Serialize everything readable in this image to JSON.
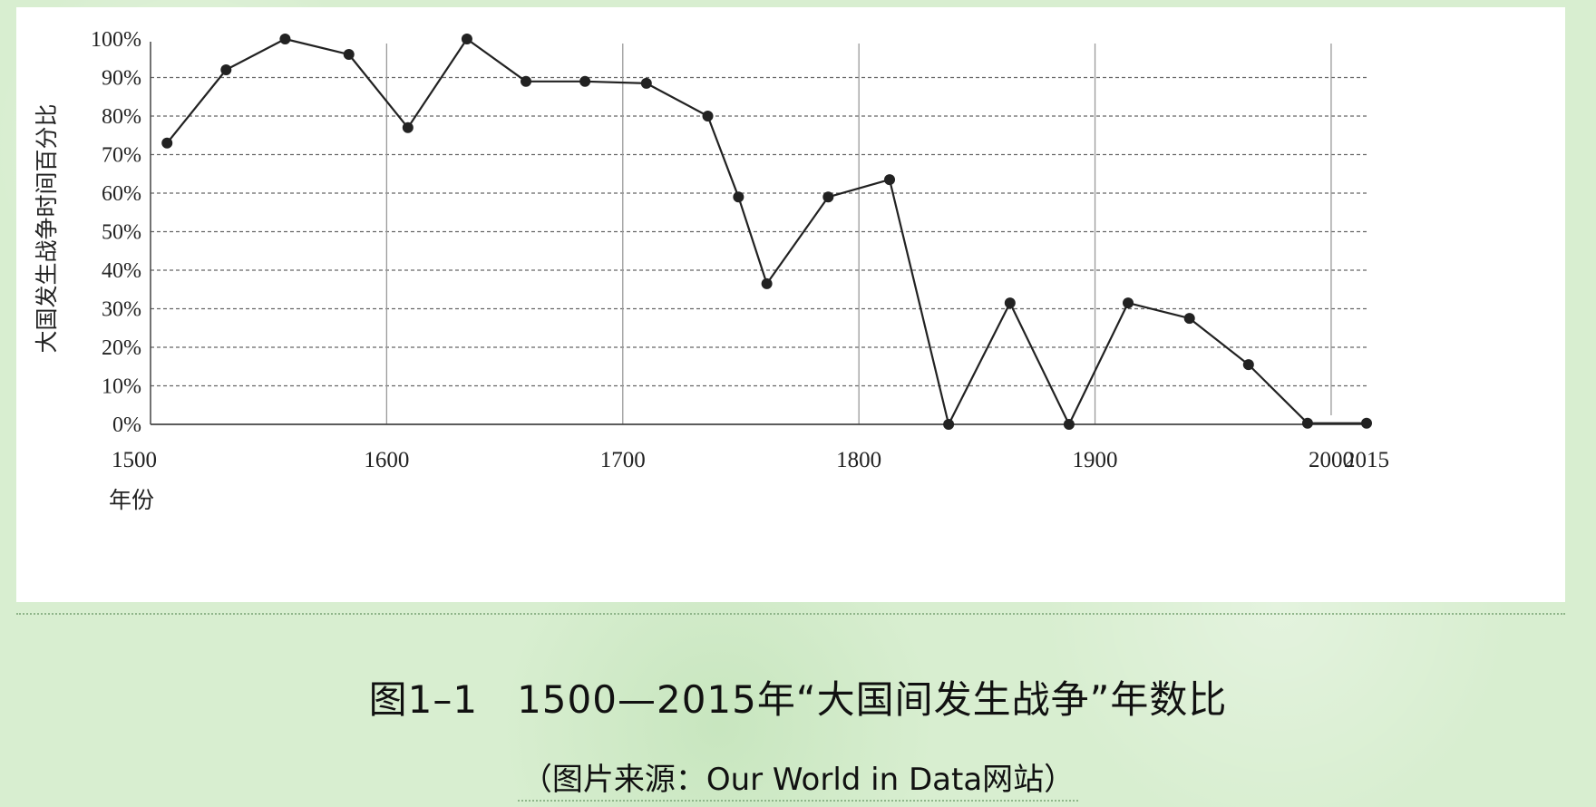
{
  "chart_data": {
    "type": "line",
    "ylabel": "大国发生战争时间百分比",
    "xlabel": "年份",
    "xlim": [
      1500,
      2015
    ],
    "ylim": [
      0,
      100
    ],
    "x_ticks": [
      "1500",
      "1600",
      "1700",
      "1800",
      "1900",
      "2000",
      "2015"
    ],
    "y_ticks": [
      "0%",
      "10%",
      "20%",
      "30%",
      "40%",
      "50%",
      "60%",
      "70%",
      "80%",
      "90%",
      "100%"
    ],
    "grid": "horizontal dashed, vertical solid at centuries",
    "legend": "none",
    "line_color": "#222222",
    "series": [
      {
        "x": [
          1507,
          1532,
          1557,
          1584,
          1609,
          1634,
          1659,
          1684,
          1710,
          1736,
          1749,
          1761,
          1787,
          1813,
          1838,
          1864,
          1889,
          1914,
          1940,
          1965,
          1990,
          2015
        ],
        "y": [
          73,
          92,
          100,
          96,
          77,
          100,
          89,
          89,
          88.5,
          80,
          59,
          36.5,
          59,
          63.5,
          0,
          31.5,
          0,
          31.5,
          27.5,
          15.5,
          0.3,
          0.3
        ]
      }
    ]
  },
  "caption": "图1–1   1500—2015年“大国间发生战争”年数比",
  "source": "（图片来源：Our World in Data网站）"
}
